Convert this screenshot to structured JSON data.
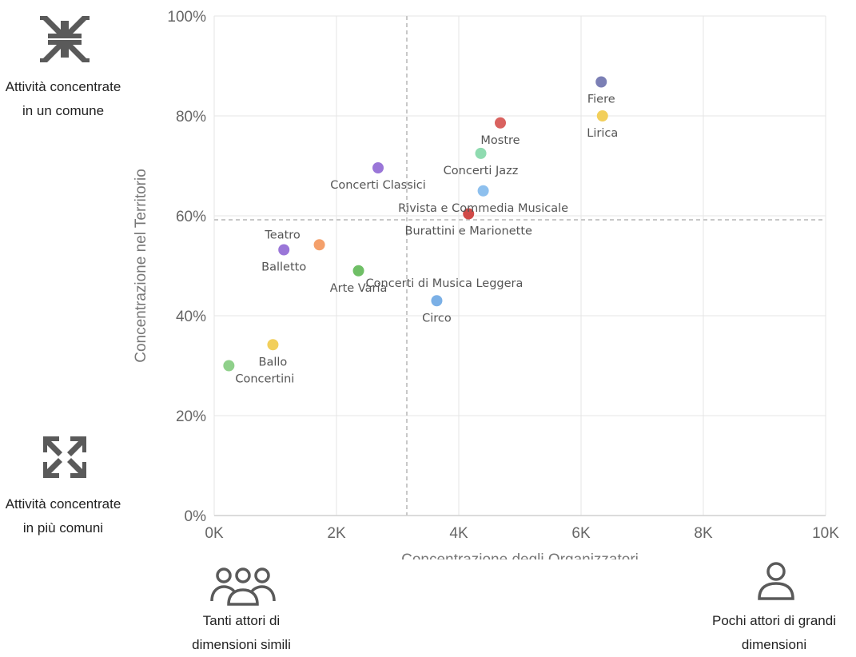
{
  "legend_panel": {
    "top_label": "Attività concentrate in un comune",
    "top_icon": "compress-arrows-icon",
    "bottom_label": "Attività concentrate in più comuni",
    "bottom_icon": "expand-arrows-icon",
    "left_bottom_label": "Tanti attori di dimensioni simili",
    "left_bottom_icon": "group-people-icon",
    "right_bottom_label": "Pochi attori di grandi dimensioni",
    "right_bottom_icon": "single-person-icon",
    "icon_color": "#5a5a5a"
  },
  "chart_data": {
    "type": "scatter",
    "xlabel": "Concentrazione degli Organizzatori",
    "ylabel": "Concentrazione nel Territorio",
    "xlim": [
      0,
      10000
    ],
    "ylim": [
      0,
      100
    ],
    "x_ticks": [
      0,
      2000,
      4000,
      6000,
      8000,
      10000
    ],
    "x_tick_labels": [
      "0K",
      "2K",
      "4K",
      "6K",
      "8K",
      "10K"
    ],
    "y_ticks": [
      0,
      20,
      40,
      60,
      80,
      100
    ],
    "y_tick_labels": [
      "0%",
      "20%",
      "40%",
      "60%",
      "80%",
      "100%"
    ],
    "grid": true,
    "reference_lines": {
      "x": 3150,
      "y": 59.2
    },
    "points": [
      {
        "label": "Fiere",
        "x": 6330,
        "y": 86.8,
        "color": "#7b7fb5",
        "label_pos": "below"
      },
      {
        "label": "Lirica",
        "x": 6350,
        "y": 80.0,
        "color": "#f2cf5b",
        "label_pos": "below"
      },
      {
        "label": "Mostre",
        "x": 4680,
        "y": 78.6,
        "color": "#d9625f",
        "label_pos": "below"
      },
      {
        "label": "Concerti Jazz",
        "x": 4360,
        "y": 72.5,
        "color": "#8fdbb0",
        "label_pos": "below"
      },
      {
        "label": "Concerti Classici",
        "x": 2680,
        "y": 69.6,
        "color": "#9a76d8",
        "label_pos": "below"
      },
      {
        "label": "Rivista e Commedia Musicale",
        "x": 4400,
        "y": 65.0,
        "color": "#8ec0ee",
        "label_pos": "below"
      },
      {
        "label": "Burattini e Marionette",
        "x": 4160,
        "y": 60.4,
        "color": "#d04a48",
        "label_pos": "below"
      },
      {
        "label": "Teatro",
        "x": 1720,
        "y": 54.2,
        "color": "#f4a06b",
        "label_pos": "custom"
      },
      {
        "label": "Balletto",
        "x": 1140,
        "y": 53.2,
        "color": "#9a76d8",
        "label_pos": "below"
      },
      {
        "label": "Concerti di Musica Leggera",
        "x": 2360,
        "y": 49.0,
        "color": "#6fbf66",
        "label_pos": "custom"
      },
      {
        "label": "Arte Varia",
        "x": 2360,
        "y": 49.0,
        "color": "#6fbf66",
        "label_pos": "below"
      },
      {
        "label": "Circo",
        "x": 3640,
        "y": 43.0,
        "color": "#7bb0e6",
        "label_pos": "below"
      },
      {
        "label": "Ballo",
        "x": 960,
        "y": 34.2,
        "color": "#f2cf5b",
        "label_pos": "below"
      },
      {
        "label": "Concertini",
        "x": 240,
        "y": 30.0,
        "color": "#8fd08a",
        "label_pos": "custom"
      }
    ]
  }
}
